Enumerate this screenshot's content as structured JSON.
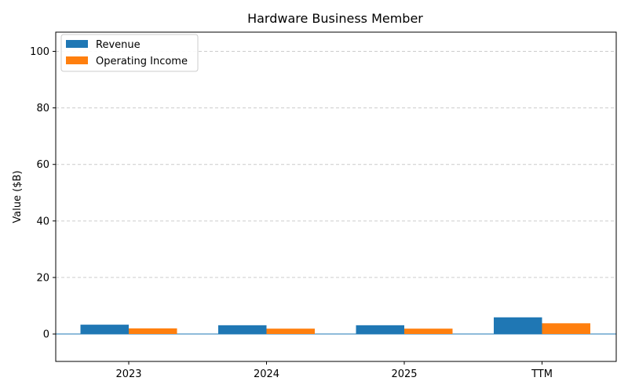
{
  "chart_data": {
    "type": "bar",
    "title": "Hardware Business Member",
    "xlabel": "",
    "ylabel": "Value ($B)",
    "categories": [
      "2023",
      "2024",
      "2025",
      "TTM"
    ],
    "series": [
      {
        "name": "Revenue",
        "color": "#1f77b4",
        "values": [
          3.3,
          3.1,
          3.1,
          5.9
        ]
      },
      {
        "name": "Operating Income",
        "color": "#ff7f0e",
        "values": [
          2.0,
          1.9,
          1.9,
          3.8
        ]
      }
    ],
    "ylim": [
      -9.7,
      106.8
    ],
    "yticks": [
      0,
      20,
      40,
      60,
      80,
      100
    ],
    "grid": true,
    "legend": "top-left"
  }
}
